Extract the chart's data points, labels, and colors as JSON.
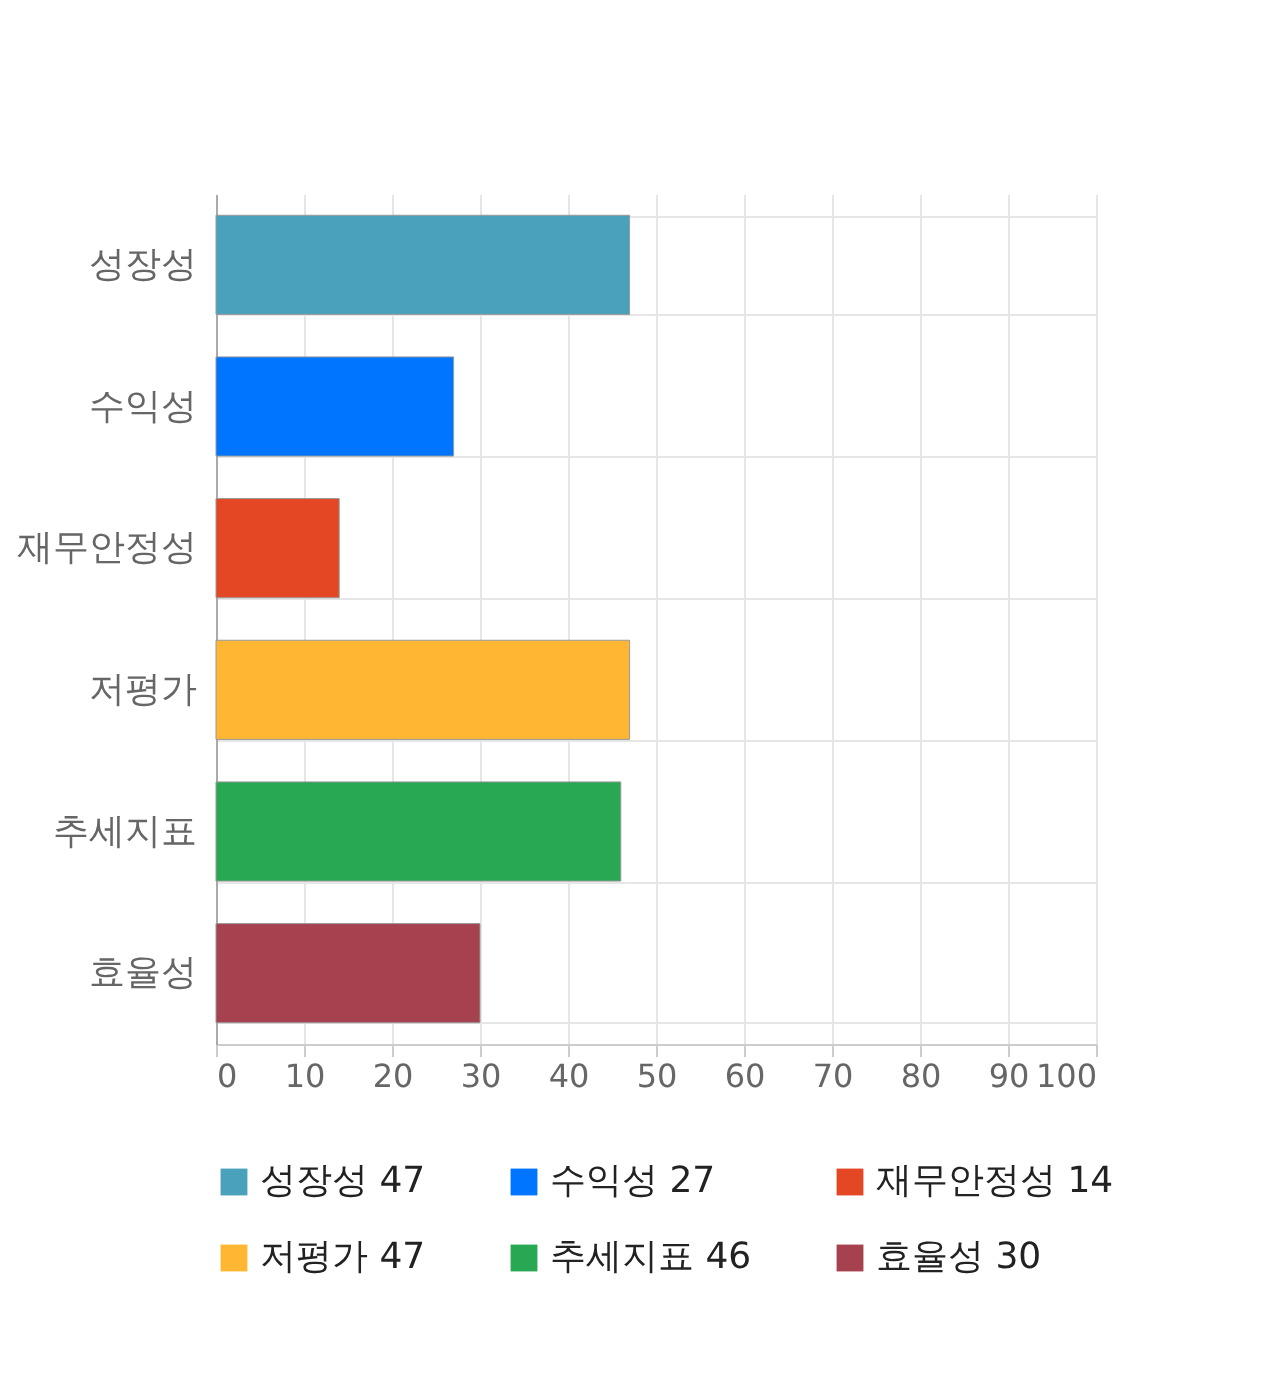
{
  "chart_data": {
    "type": "bar",
    "orientation": "horizontal",
    "categories": [
      "성장성",
      "수익성",
      "재무안정성",
      "저평가",
      "추세지표",
      "효율성"
    ],
    "series": [
      {
        "name": "성장성 47",
        "color": "#4aa1bb",
        "values": [
          47,
          null,
          null,
          null,
          null,
          null
        ]
      },
      {
        "name": "수익성 27",
        "color": "#0075ff",
        "values": [
          null,
          27,
          null,
          null,
          null,
          null
        ]
      },
      {
        "name": "재무안정성 14",
        "color": "#e34723",
        "values": [
          null,
          null,
          14,
          null,
          null,
          null
        ]
      },
      {
        "name": "저평가 47",
        "color": "#ffb733",
        "values": [
          null,
          null,
          null,
          47,
          null,
          null
        ]
      },
      {
        "name": "추세지표 46",
        "color": "#29a854",
        "values": [
          null,
          null,
          null,
          null,
          46,
          null
        ]
      },
      {
        "name": "효율성 30",
        "color": "#a6414f",
        "values": [
          null,
          null,
          null,
          null,
          null,
          30
        ]
      }
    ],
    "xlim": [
      0,
      100
    ],
    "xticks": [
      0,
      10,
      20,
      30,
      40,
      50,
      60,
      70,
      80,
      90,
      100
    ],
    "grid": true,
    "legend": "bottom"
  }
}
